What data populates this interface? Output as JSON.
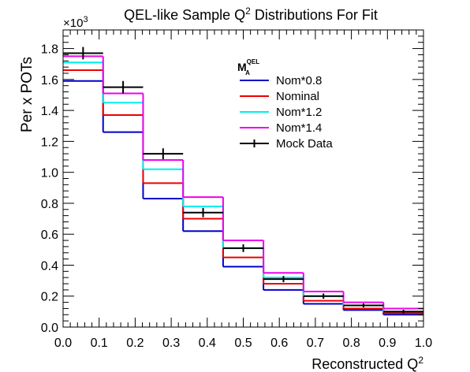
{
  "chart_data": {
    "type": "step",
    "title": {
      "main": "QEL-like Sample Q",
      "sup": "2",
      "rest": " Distributions For Fit"
    },
    "xlabel": {
      "main": "Reconstructed Q",
      "sup": "2"
    },
    "ylabel": "Per x POTs",
    "exponent_label": {
      "base": "×10",
      "sup": "3"
    },
    "xlim": [
      0.0,
      1.0
    ],
    "ylim": [
      0.0,
      1.92
    ],
    "x_ticks": [
      "0.0",
      "0.1",
      "0.2",
      "0.3",
      "0.4",
      "0.5",
      "0.6",
      "0.7",
      "0.8",
      "0.9",
      "1.0"
    ],
    "y_ticks": [
      "0.0",
      "0.2",
      "0.4",
      "0.6",
      "0.8",
      "1.0",
      "1.2",
      "1.4",
      "1.6",
      "1.8"
    ],
    "bin_edges": [
      0.0,
      0.111,
      0.222,
      0.333,
      0.444,
      0.556,
      0.667,
      0.778,
      0.889,
      1.0
    ],
    "legend": {
      "title": {
        "main": "M",
        "sub": "A",
        "sup": "QEL"
      },
      "placement": "top-right"
    },
    "series": [
      {
        "name": "Nom*0.8",
        "color": "#0000cc",
        "style": "step",
        "values": [
          1.59,
          1.26,
          0.83,
          0.62,
          0.39,
          0.24,
          0.15,
          0.11,
          0.08
        ]
      },
      {
        "name": "Nominal",
        "color": "#ee0000",
        "style": "step",
        "values": [
          1.66,
          1.37,
          0.93,
          0.7,
          0.45,
          0.28,
          0.17,
          0.12,
          0.09
        ]
      },
      {
        "name": "Nom*1.2",
        "color": "#00eeee",
        "style": "step",
        "values": [
          1.71,
          1.45,
          1.02,
          0.78,
          0.51,
          0.32,
          0.2,
          0.14,
          0.1
        ]
      },
      {
        "name": "Nom*1.4",
        "color": "#ee00ee",
        "style": "step",
        "values": [
          1.75,
          1.51,
          1.08,
          0.84,
          0.56,
          0.35,
          0.23,
          0.16,
          0.12
        ]
      },
      {
        "name": "Mock Data",
        "color": "#000000",
        "style": "points-with-errors",
        "values": [
          1.77,
          1.55,
          1.12,
          0.74,
          0.51,
          0.31,
          0.2,
          0.14,
          0.1
        ],
        "errors": [
          0.04,
          0.04,
          0.035,
          0.03,
          0.025,
          0.02,
          0.017,
          0.013,
          0.012
        ]
      }
    ]
  }
}
